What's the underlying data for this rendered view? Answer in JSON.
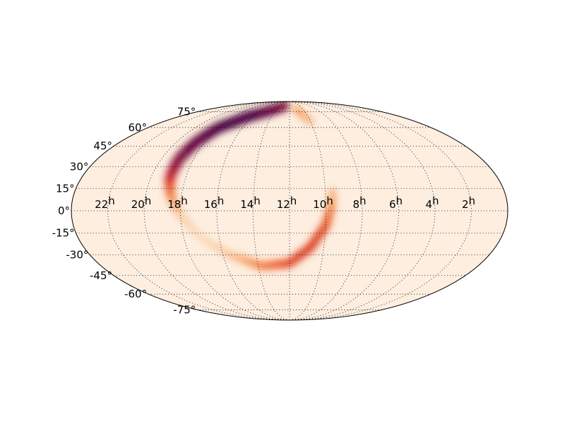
{
  "map": {
    "projection": "mollweide",
    "background_color": "#fdeee0",
    "outline_color": "#000000",
    "grid_style": "dotted",
    "colormap": [
      "#fdeee0",
      "#fbcfa6",
      "#f59a5a",
      "#ec5d2b",
      "#d02a22",
      "#8f0a37",
      "#4a0340"
    ]
  },
  "ra_labels": [
    {
      "hours": 22,
      "text": "22",
      "unit": "h"
    },
    {
      "hours": 20,
      "text": "20",
      "unit": "h"
    },
    {
      "hours": 18,
      "text": "18",
      "unit": "h"
    },
    {
      "hours": 16,
      "text": "16",
      "unit": "h"
    },
    {
      "hours": 14,
      "text": "14",
      "unit": "h"
    },
    {
      "hours": 12,
      "text": "12",
      "unit": "h"
    },
    {
      "hours": 10,
      "text": "10",
      "unit": "h"
    },
    {
      "hours": 8,
      "text": "8",
      "unit": "h"
    },
    {
      "hours": 6,
      "text": "6",
      "unit": "h"
    },
    {
      "hours": 4,
      "text": "4",
      "unit": "h"
    },
    {
      "hours": 2,
      "text": "2",
      "unit": "h"
    }
  ],
  "dec_labels": [
    {
      "deg": 75,
      "text": "75°"
    },
    {
      "deg": 60,
      "text": "60°"
    },
    {
      "deg": 45,
      "text": "45°"
    },
    {
      "deg": 30,
      "text": "30°"
    },
    {
      "deg": 15,
      "text": "15°"
    },
    {
      "deg": 0,
      "text": "0°"
    },
    {
      "deg": -15,
      "text": "-15°"
    },
    {
      "deg": -30,
      "text": "-30°"
    },
    {
      "deg": -45,
      "text": "-45°"
    },
    {
      "deg": -60,
      "text": "-60°"
    },
    {
      "deg": -75,
      "text": "-75°"
    }
  ],
  "probability_arc": {
    "description_points_ra_dec": [
      {
        "ra_h": 13.0,
        "dec": 82,
        "w": 0.85
      },
      {
        "ra_h": 16.5,
        "dec": 70,
        "w": 1.0
      },
      {
        "ra_h": 18.0,
        "dec": 60,
        "w": 1.0
      },
      {
        "ra_h": 18.6,
        "dec": 48,
        "w": 0.95
      },
      {
        "ra_h": 18.9,
        "dec": 35,
        "w": 0.9
      },
      {
        "ra_h": 18.9,
        "dec": 22,
        "w": 0.75
      },
      {
        "ra_h": 18.6,
        "dec": 10,
        "w": 0.45
      },
      {
        "ra_h": 18.0,
        "dec": -3,
        "w": 0.2
      },
      {
        "ra_h": 17.0,
        "dec": -18,
        "w": 0.12
      },
      {
        "ra_h": 15.6,
        "dec": -30,
        "w": 0.2
      },
      {
        "ra_h": 13.8,
        "dec": -38,
        "w": 0.4
      },
      {
        "ra_h": 12.0,
        "dec": -36,
        "w": 0.55
      },
      {
        "ra_h": 10.8,
        "dec": -25,
        "w": 0.6
      },
      {
        "ra_h": 10.0,
        "dec": -10,
        "w": 0.55
      },
      {
        "ra_h": 9.7,
        "dec": 3,
        "w": 0.4
      },
      {
        "ra_h": 9.6,
        "dec": 13,
        "w": 0.25
      },
      {
        "ra_h": 10.0,
        "dec": 65,
        "w": 0.25
      },
      {
        "ra_h": 11.0,
        "dec": 78,
        "w": 0.35
      }
    ]
  }
}
